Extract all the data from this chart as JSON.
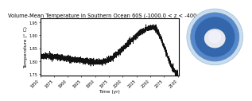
{
  "title": "Volume-Mean Temperature in Southern Ocean 60S (-1000.0 < z < -400.0 m)",
  "xlabel": "Time (yr)",
  "ylabel": "Temperature (° C)",
  "xlim": [
    1850,
    2101
  ],
  "ylim": [
    1.745,
    1.965
  ],
  "yticks": [
    1.75,
    1.8,
    1.85,
    1.9,
    1.95
  ],
  "ytick_labels": [
    "1.75",
    "1.80",
    "1.85",
    "1.90",
    "1.95"
  ],
  "xticks": [
    1850,
    1875,
    1900,
    1925,
    1950,
    1975,
    2000,
    2025,
    2050,
    2075,
    2100
  ],
  "line_color": "#111111",
  "line_width": 0.55,
  "bg_color": "#ffffff",
  "title_fontsize": 4.8,
  "label_fontsize": 4.2,
  "tick_fontsize": 3.5,
  "globe_outer_color": "#aac8e8",
  "globe_mid_color": "#5588cc",
  "globe_inner_color": "#3366aa",
  "globe_antarctica_color": "#e8e8f0",
  "globe_highlight_color": "#88aacc"
}
